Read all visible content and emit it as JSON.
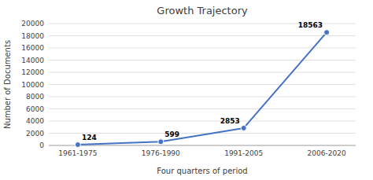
{
  "chart_data": {
    "type": "line",
    "title": "Growth Trajectory",
    "x_label": "Four quarters of period",
    "y_label": "Number of Documents",
    "categories": [
      "1961-1975",
      "1976-1990",
      "1991-2005",
      "2006-2020"
    ],
    "values": [
      124,
      599,
      2853,
      18563
    ],
    "color": "#4472C4",
    "marker": "circle",
    "ylim": [
      0,
      20000
    ],
    "yticks": [
      0,
      2000,
      4000,
      6000,
      8000,
      10000,
      12000,
      14000,
      16000,
      18000,
      20000
    ],
    "grid": true,
    "data_labels": true
  }
}
